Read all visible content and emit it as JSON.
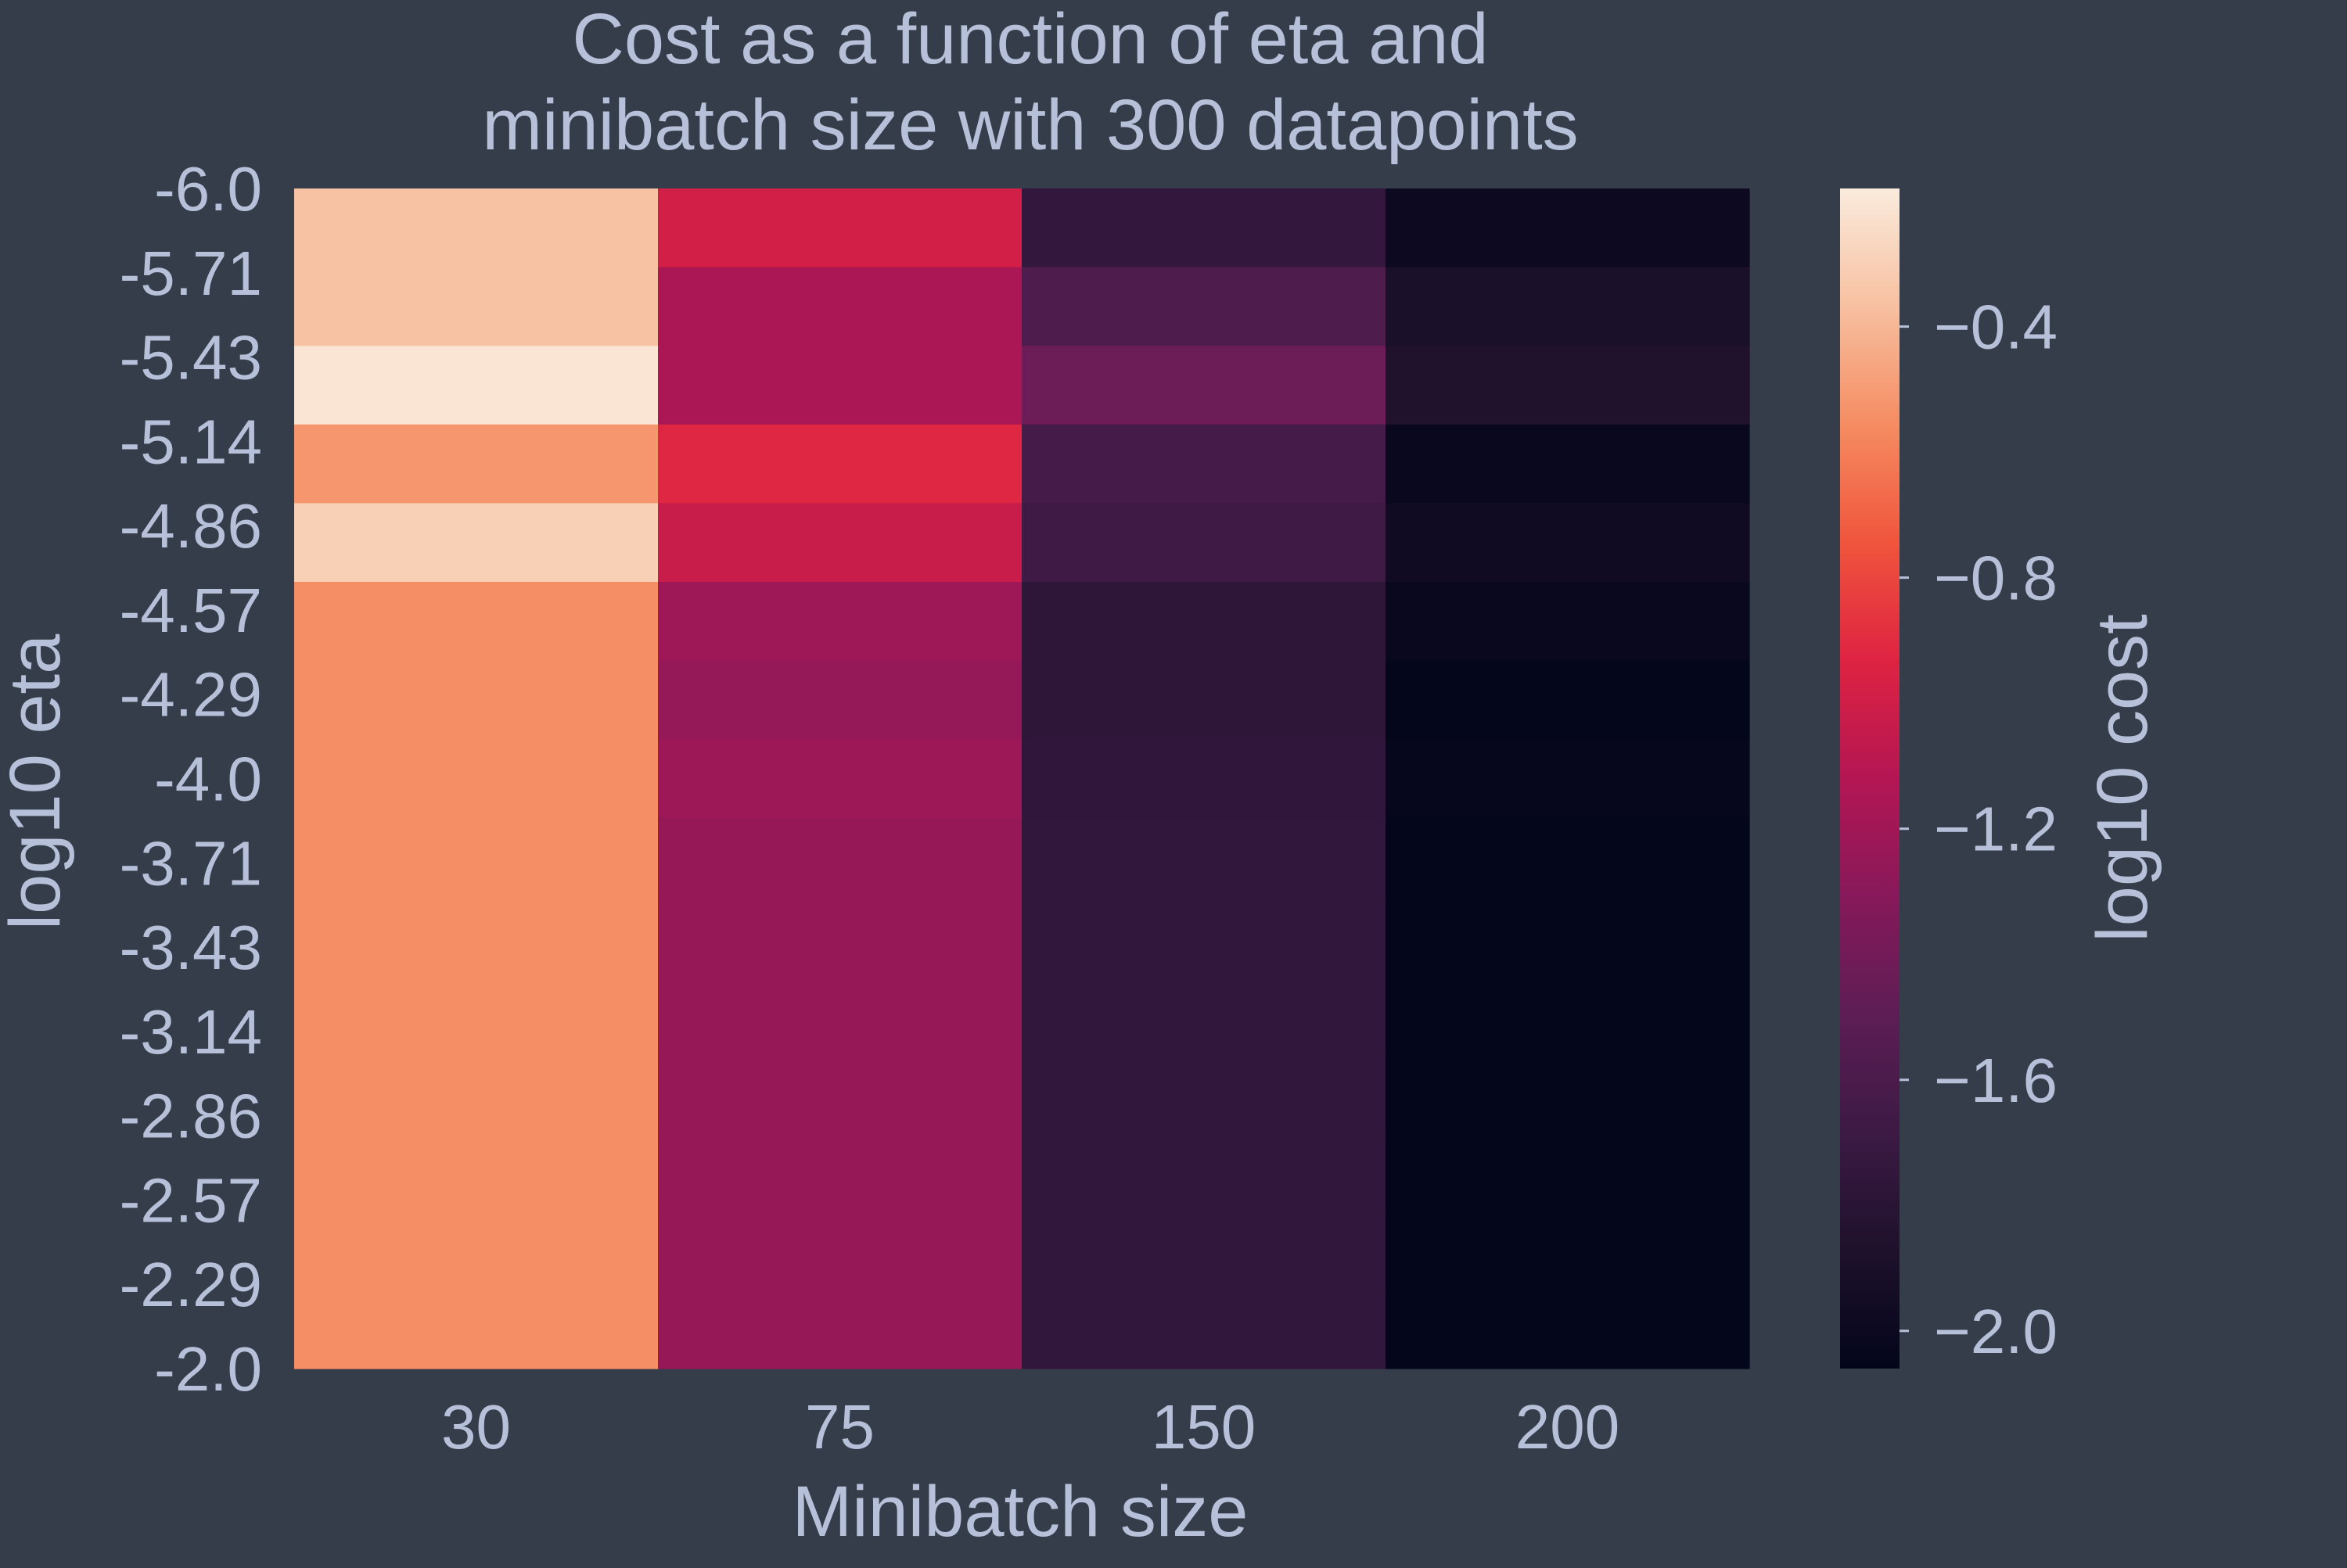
{
  "chart_data": {
    "type": "heatmap",
    "title": [
      "Cost as a function of eta and",
      "minibatch size with 300 datapoints"
    ],
    "xlabel": "Minibatch size",
    "ylabel": "log10 eta",
    "colorbar_label": "log10 cost",
    "x_categories": [
      "30",
      "75",
      "150",
      "200"
    ],
    "y_categories": [
      "-6.0",
      "-5.71",
      "-5.43",
      "-5.14",
      "-4.86",
      "-4.57",
      "-4.29",
      "-4.0",
      "-3.71",
      "-3.43",
      "-3.14",
      "-2.86",
      "-2.57",
      "-2.29",
      "-2.0"
    ],
    "colorbar_ticks": [
      "−0.4",
      "−0.8",
      "−1.2",
      "−1.6",
      "−2.0"
    ],
    "colorbar_tick_values": [
      -0.4,
      -0.8,
      -1.2,
      -1.6,
      -2.0
    ],
    "vmin": -2.06,
    "vmax": -0.18,
    "colormap": "rocket",
    "values": [
      [
        -0.36,
        -0.99,
        -1.74,
        -1.99
      ],
      [
        -0.36,
        -1.16,
        -1.58,
        -1.89
      ],
      [
        -0.21,
        -1.16,
        -1.43,
        -1.86
      ],
      [
        -0.52,
        -0.92,
        -1.63,
        -2.02
      ],
      [
        -0.3,
        -1.03,
        -1.67,
        -1.97
      ],
      [
        -0.55,
        -1.21,
        -1.77,
        -2.02
      ],
      [
        -0.55,
        -1.25,
        -1.77,
        -2.05
      ],
      [
        -0.55,
        -1.22,
        -1.76,
        -2.04
      ],
      [
        -0.55,
        -1.24,
        -1.75,
        -2.05
      ],
      [
        -0.55,
        -1.24,
        -1.75,
        -2.05
      ],
      [
        -0.55,
        -1.24,
        -1.75,
        -2.05
      ],
      [
        -0.55,
        -1.24,
        -1.75,
        -2.05
      ],
      [
        -0.55,
        -1.24,
        -1.75,
        -2.05
      ],
      [
        -0.55,
        -1.24,
        -1.75,
        -2.05
      ],
      [
        -0.55,
        -1.24,
        -1.75,
        -2.05
      ]
    ]
  },
  "colors": {
    "background": "#363d4a",
    "text": "#b6c1d9"
  }
}
